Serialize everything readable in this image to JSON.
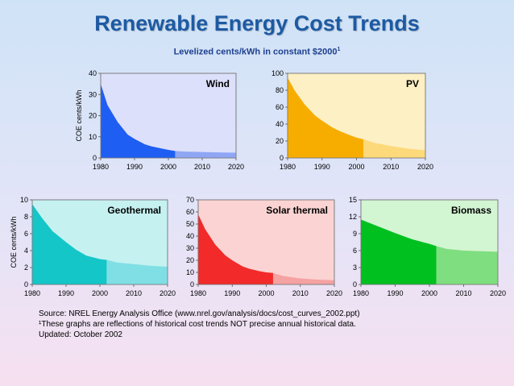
{
  "page": {
    "title": "Renewable Energy Cost Trends",
    "subtitle": "Levelized cents/kWh in constant $2000",
    "subtitle_sup": "1",
    "notes": [
      "Source: NREL Energy Analysis Office (www.nrel.gov/analysis/docs/cost_curves_2002.ppt)",
      "¹These graphs are reflections of historical cost trends NOT precise annual historical data.",
      "Updated: October 2002"
    ]
  },
  "chart_data": [
    {
      "type": "area",
      "title": "Wind",
      "ylabel": "COE cents/kWh",
      "xlim": [
        1980,
        2020
      ],
      "ylim": [
        0,
        40
      ],
      "xticks": [
        1980,
        1990,
        2000,
        2010,
        2020
      ],
      "yticks": [
        0,
        10,
        20,
        30,
        40
      ],
      "historical_end": 2002,
      "x": [
        1980,
        1982,
        1985,
        1988,
        1990,
        1993,
        1995,
        1998,
        2000,
        2002,
        2005,
        2010,
        2015,
        2020
      ],
      "values": [
        35,
        25,
        17,
        11,
        9,
        6.5,
        5.5,
        4.5,
        3.8,
        3.3,
        3.0,
        2.8,
        2.6,
        2.5
      ],
      "colors": {
        "fill": "#1f5ef2",
        "projection": "#8ea6f4",
        "bg": "#dde0fb"
      }
    },
    {
      "type": "area",
      "title": "PV",
      "ylabel": "",
      "xlim": [
        1980,
        2020
      ],
      "ylim": [
        0,
        100
      ],
      "xticks": [
        1980,
        1990,
        2000,
        2010,
        2020
      ],
      "yticks": [
        0,
        20,
        40,
        60,
        80,
        100
      ],
      "historical_end": 2002,
      "x": [
        1980,
        1982,
        1985,
        1988,
        1990,
        1993,
        1995,
        1998,
        2000,
        2002,
        2005,
        2010,
        2015,
        2020
      ],
      "values": [
        95,
        80,
        63,
        50,
        44,
        36,
        32,
        27,
        24,
        22,
        18,
        14,
        11,
        9
      ],
      "colors": {
        "fill": "#f7ad00",
        "projection": "#fcd97a",
        "bg": "#fdf0c4"
      }
    },
    {
      "type": "area",
      "title": "Geothermal",
      "ylabel": "COE cents/kWh",
      "xlim": [
        1980,
        2020
      ],
      "ylim": [
        0,
        10
      ],
      "xticks": [
        1980,
        1990,
        2000,
        2010,
        2020
      ],
      "yticks": [
        0,
        2,
        4,
        6,
        8,
        10
      ],
      "historical_end": 2002,
      "x": [
        1980,
        1983,
        1986,
        1990,
        1993,
        1996,
        2000,
        2002,
        2005,
        2010,
        2015,
        2020
      ],
      "values": [
        9.5,
        7.8,
        6.3,
        5.0,
        4.1,
        3.4,
        3.0,
        2.9,
        2.6,
        2.4,
        2.2,
        2.1
      ],
      "colors": {
        "fill": "#14c6c8",
        "projection": "#7fdfe4",
        "bg": "#c5f1f1"
      }
    },
    {
      "type": "area",
      "title": "Solar thermal",
      "ylabel": "",
      "xlim": [
        1980,
        2020
      ],
      "ylim": [
        0,
        70
      ],
      "xticks": [
        1980,
        1990,
        2000,
        2010,
        2020
      ],
      "yticks": [
        0,
        10,
        20,
        30,
        40,
        50,
        60,
        70
      ],
      "historical_end": 2002,
      "x": [
        1980,
        1982,
        1985,
        1988,
        1990,
        1993,
        1995,
        1998,
        2000,
        2002,
        2005,
        2010,
        2015,
        2020
      ],
      "values": [
        58,
        46,
        33,
        24,
        20,
        15,
        13,
        11,
        10,
        9.5,
        7,
        5,
        4,
        3.5
      ],
      "colors": {
        "fill": "#f22a2a",
        "projection": "#f5a2a2",
        "bg": "#fbd3d3"
      }
    },
    {
      "type": "area",
      "title": "Biomass",
      "ylabel": "",
      "xlim": [
        1980,
        2020
      ],
      "ylim": [
        0,
        15
      ],
      "xticks": [
        1980,
        1990,
        2000,
        2010,
        2020
      ],
      "yticks": [
        0,
        3,
        6,
        9,
        12,
        15
      ],
      "historical_end": 2002,
      "x": [
        1980,
        1985,
        1990,
        1995,
        2000,
        2002,
        2005,
        2010,
        2015,
        2020
      ],
      "values": [
        11.5,
        10.3,
        9.1,
        8.0,
        7.2,
        6.8,
        6.3,
        6.0,
        5.9,
        5.8
      ],
      "colors": {
        "fill": "#00c020",
        "projection": "#7fde7f",
        "bg": "#d2f5d2"
      }
    }
  ]
}
